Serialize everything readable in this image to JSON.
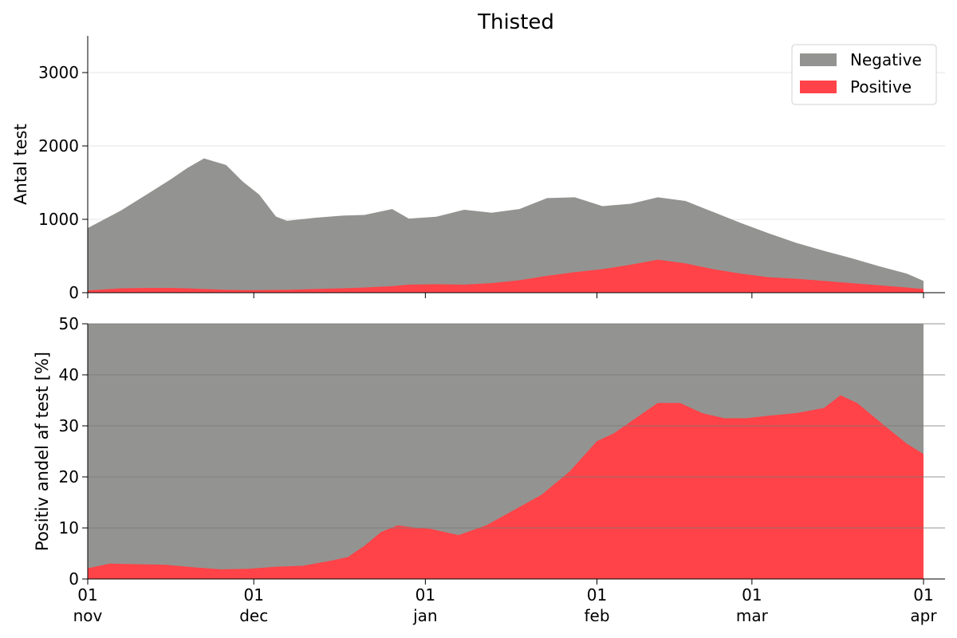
{
  "title": "Thisted",
  "colors": {
    "negative": "#939491",
    "positive": "#ff4348",
    "grid": "#e6e6e6",
    "grid_dark": "#7a7a78"
  },
  "x_ticks": [
    {
      "date": "2020-11-01",
      "day": "01",
      "month": "nov"
    },
    {
      "date": "2020-12-01",
      "day": "01",
      "month": "dec"
    },
    {
      "date": "2021-01-01",
      "day": "01",
      "month": "jan"
    },
    {
      "date": "2021-02-01",
      "day": "01",
      "month": "feb"
    },
    {
      "date": "2021-03-01",
      "day": "01",
      "month": "mar"
    },
    {
      "date": "2021-04-01",
      "day": "01",
      "month": "apr"
    }
  ],
  "chart_data": [
    {
      "type": "area",
      "stacked": true,
      "title": "Thisted",
      "xlabel": "",
      "ylabel": "Antal test",
      "xlim": [
        "2020-11-01",
        "2021-04-01"
      ],
      "ylim": [
        0,
        3500
      ],
      "yticks": [
        0,
        1000,
        2000,
        3000
      ],
      "grid": true,
      "legend": {
        "position": "top-right",
        "entries": [
          "Negative",
          "Positive"
        ]
      },
      "x": [
        "2020-11-01",
        "2020-11-07",
        "2020-11-12",
        "2020-11-16",
        "2020-11-19",
        "2020-11-22",
        "2020-11-26",
        "2020-11-29",
        "2020-12-02",
        "2020-12-05",
        "2020-12-07",
        "2020-12-12",
        "2020-12-17",
        "2020-12-21",
        "2020-12-26",
        "2020-12-29",
        "2021-01-03",
        "2021-01-08",
        "2021-01-13",
        "2021-01-18",
        "2021-01-23",
        "2021-01-28",
        "2021-02-02",
        "2021-02-07",
        "2021-02-12",
        "2021-02-17",
        "2021-02-22",
        "2021-02-27",
        "2021-03-04",
        "2021-03-09",
        "2021-03-14",
        "2021-03-19",
        "2021-03-24",
        "2021-03-29",
        "2021-04-01"
      ],
      "series": [
        {
          "name": "Negative",
          "values": [
            850,
            1060,
            1290,
            1480,
            1640,
            1780,
            1700,
            1480,
            1300,
            1000,
            940,
            970,
            990,
            990,
            1050,
            900,
            920,
            1020,
            960,
            970,
            1060,
            1020,
            860,
            830,
            850,
            850,
            780,
            690,
            600,
            490,
            410,
            340,
            260,
            190,
            110
          ]
        },
        {
          "name": "Positive",
          "values": [
            30,
            60,
            65,
            65,
            60,
            50,
            40,
            35,
            35,
            38,
            40,
            50,
            60,
            70,
            90,
            110,
            115,
            110,
            130,
            170,
            230,
            280,
            320,
            380,
            450,
            400,
            320,
            260,
            210,
            190,
            160,
            130,
            100,
            70,
            50
          ]
        }
      ]
    },
    {
      "type": "area",
      "stacked": true,
      "title": "",
      "xlabel": "",
      "ylabel": "Positiv andel af test [%]",
      "xlim": [
        "2020-11-01",
        "2021-04-01"
      ],
      "ylim": [
        0,
        50
      ],
      "yticks": [
        0,
        10,
        20,
        30,
        40,
        50
      ],
      "grid": true,
      "series": [
        {
          "name": "Positive",
          "x": [
            "2020-11-01",
            "2020-11-05",
            "2020-11-10",
            "2020-11-15",
            "2020-11-20",
            "2020-11-25",
            "2020-11-30",
            "2020-12-05",
            "2020-12-10",
            "2020-12-15",
            "2020-12-18",
            "2020-12-21",
            "2020-12-24",
            "2020-12-27",
            "2020-12-30",
            "2021-01-02",
            "2021-01-07",
            "2021-01-12",
            "2021-01-17",
            "2021-01-22",
            "2021-01-27",
            "2021-02-01",
            "2021-02-04",
            "2021-02-08",
            "2021-02-12",
            "2021-02-16",
            "2021-02-20",
            "2021-02-24",
            "2021-02-28",
            "2021-03-04",
            "2021-03-09",
            "2021-03-14",
            "2021-03-17",
            "2021-03-20",
            "2021-03-25",
            "2021-03-29",
            "2021-04-01"
          ],
          "values": [
            2.1,
            3.0,
            2.9,
            2.8,
            2.3,
            1.9,
            2.0,
            2.4,
            2.6,
            3.6,
            4.3,
            6.5,
            9.2,
            10.5,
            10.1,
            9.8,
            8.6,
            10.5,
            13.5,
            16.5,
            21.0,
            27.0,
            28.5,
            31.5,
            34.5,
            34.5,
            32.5,
            31.5,
            31.5,
            32.0,
            32.5,
            33.5,
            36.0,
            34.5,
            30.0,
            26.5,
            24.5
          ]
        },
        {
          "name": "Negative",
          "values": "remainder to 100%"
        }
      ]
    }
  ]
}
